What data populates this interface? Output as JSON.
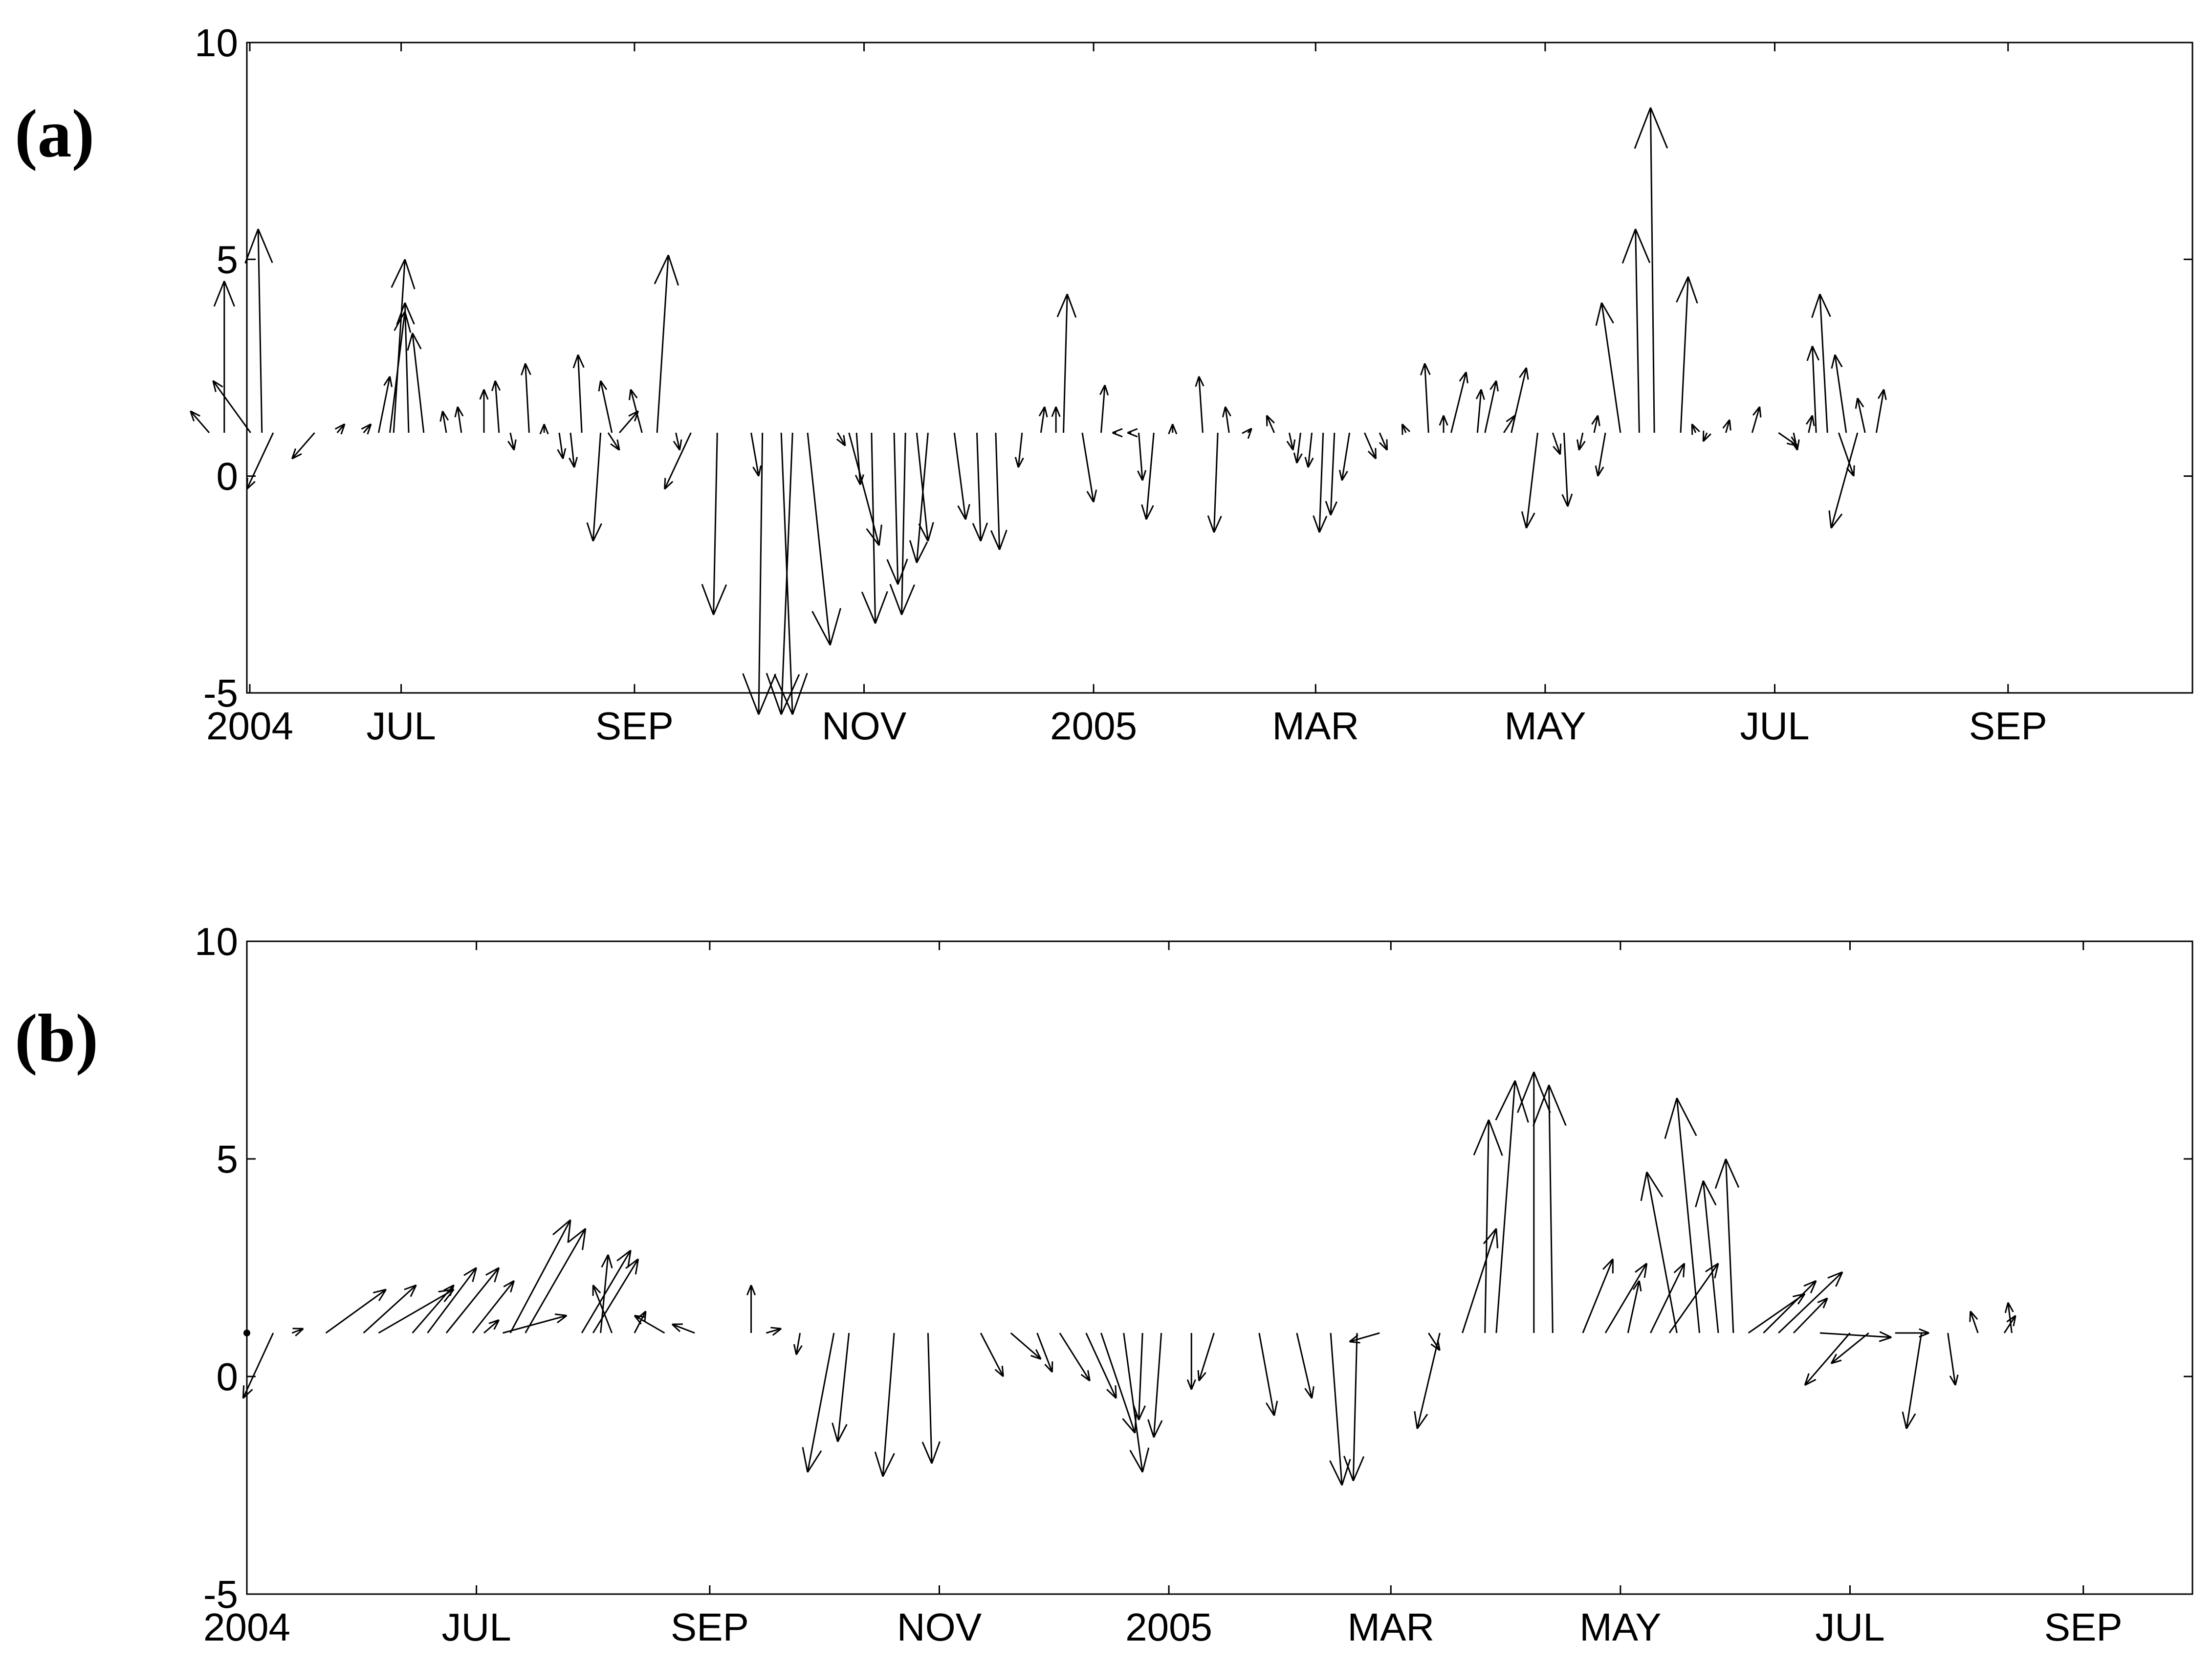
{
  "figure": {
    "title": ""
  },
  "chart_data": [
    {
      "type": "quiver",
      "panel_label": "(a)",
      "title": "",
      "xlabel": "",
      "ylabel": "",
      "baseline": 1,
      "ylim": [
        -5,
        10
      ],
      "yticks": [
        -5,
        0,
        5,
        10
      ],
      "xlim": [
        "2004-05-21",
        "2005-10-20"
      ],
      "xticks": [
        {
          "date": "2004-05-01",
          "label": "2004"
        },
        {
          "date": "2004-07-01",
          "label": "JUL"
        },
        {
          "date": "2004-09-01",
          "label": "SEP"
        },
        {
          "date": "2004-11-01",
          "label": "NOV"
        },
        {
          "date": "2005-01-01",
          "label": "2005"
        },
        {
          "date": "2005-03-01",
          "label": "MAR"
        },
        {
          "date": "2005-05-01",
          "label": "MAY"
        },
        {
          "date": "2005-07-01",
          "label": "JUL"
        },
        {
          "date": "2005-09-01",
          "label": "SEP"
        }
      ],
      "vectors": [
        {
          "date": "2004-05-11",
          "u": -5,
          "v": 0.5
        },
        {
          "date": "2004-05-15",
          "u": 0,
          "v": 3.5
        },
        {
          "date": "2004-05-22",
          "u": -10,
          "v": 1.2
        },
        {
          "date": "2004-05-25",
          "u": -1,
          "v": 4.7
        },
        {
          "date": "2004-05-27",
          "u": 0,
          "v": 0
        },
        {
          "date": "2004-05-28",
          "u": -7,
          "v": -1.3
        },
        {
          "date": "2004-06-08",
          "u": -6,
          "v": -0.6
        },
        {
          "date": "2004-06-14",
          "u": 2,
          "v": 0.2
        },
        {
          "date": "2004-06-21",
          "u": 2,
          "v": 0.2
        },
        {
          "date": "2004-06-25",
          "u": 3,
          "v": 1.3
        },
        {
          "date": "2004-06-28",
          "u": 4,
          "v": 2.8
        },
        {
          "date": "2004-06-29",
          "u": 3,
          "v": 4.0
        },
        {
          "date": "2004-07-03",
          "u": -1,
          "v": 3.0
        },
        {
          "date": "2004-07-07",
          "u": -3,
          "v": 2.3
        },
        {
          "date": "2004-07-13",
          "u": -1,
          "v": 0.5
        },
        {
          "date": "2004-07-17",
          "u": -1,
          "v": 0.6
        },
        {
          "date": "2004-07-23",
          "u": 0,
          "v": 1.0
        },
        {
          "date": "2004-07-27",
          "u": -1,
          "v": 1.2
        },
        {
          "date": "2004-07-30",
          "u": 1,
          "v": -0.4
        },
        {
          "date": "2004-08-04",
          "u": -1,
          "v": 1.6
        },
        {
          "date": "2004-08-08",
          "u": 0,
          "v": 0.2
        },
        {
          "date": "2004-08-12",
          "u": 1,
          "v": -0.6
        },
        {
          "date": "2004-08-15",
          "u": 1,
          "v": -0.8
        },
        {
          "date": "2004-08-18",
          "u": -1,
          "v": 1.8
        },
        {
          "date": "2004-08-21",
          "u": 0,
          "v": 0.0
        },
        {
          "date": "2004-08-23",
          "u": -2,
          "v": -2.5
        },
        {
          "date": "2004-08-25",
          "u": 3,
          "v": -0.4
        },
        {
          "date": "2004-08-26",
          "u": -3,
          "v": 1.2
        },
        {
          "date": "2004-08-28",
          "u": 5,
          "v": 0.5
        },
        {
          "date": "2004-09-03",
          "u": -3,
          "v": 1.0
        },
        {
          "date": "2004-09-07",
          "u": 3,
          "v": 4.1
        },
        {
          "date": "2004-09-12",
          "u": 1,
          "v": -0.4
        },
        {
          "date": "2004-09-16",
          "u": -7,
          "v": -1.3
        },
        {
          "date": "2004-09-23",
          "u": -1,
          "v": -4.2
        },
        {
          "date": "2004-09-30",
          "u": 0,
          "v": 0.0
        },
        {
          "date": "2004-10-02",
          "u": 2,
          "v": -1.0
        },
        {
          "date": "2004-10-05",
          "u": -1,
          "v": -6.5
        },
        {
          "date": "2004-10-10",
          "u": 3,
          "v": -6.5
        },
        {
          "date": "2004-10-13",
          "u": -3,
          "v": -6.5
        },
        {
          "date": "2004-10-17",
          "u": 6,
          "v": -4.9
        },
        {
          "date": "2004-10-25",
          "u": 2,
          "v": -0.3
        },
        {
          "date": "2004-10-28",
          "u": 8,
          "v": -2.6
        },
        {
          "date": "2004-10-30",
          "u": 1,
          "v": -1.2
        },
        {
          "date": "2004-11-03",
          "u": 1,
          "v": -4.4
        },
        {
          "date": "2004-11-09",
          "u": 1,
          "v": -3.5
        },
        {
          "date": "2004-11-12",
          "u": -1,
          "v": -4.2
        },
        {
          "date": "2004-11-15",
          "u": 3,
          "v": -2.5
        },
        {
          "date": "2004-11-18",
          "u": -3,
          "v": -3.0
        },
        {
          "date": "2004-11-25",
          "u": 3,
          "v": -2.0
        },
        {
          "date": "2004-12-01",
          "u": 1,
          "v": -2.5
        },
        {
          "date": "2004-12-06",
          "u": 1,
          "v": -2.7
        },
        {
          "date": "2004-12-13",
          "u": -1,
          "v": -0.8
        },
        {
          "date": "2004-12-18",
          "u": 1,
          "v": 0.6
        },
        {
          "date": "2004-12-22",
          "u": 0,
          "v": 0.6
        },
        {
          "date": "2004-12-24",
          "u": 1,
          "v": 3.2
        },
        {
          "date": "2004-12-29",
          "u": 3,
          "v": -1.6
        },
        {
          "date": "2005-01-03",
          "u": 1,
          "v": 1.1
        },
        {
          "date": "2005-01-07",
          "u": -1,
          "v": 0.0
        },
        {
          "date": "2005-01-11",
          "u": -1,
          "v": 0.0
        },
        {
          "date": "2005-01-13",
          "u": 1,
          "v": -1.1
        },
        {
          "date": "2005-01-17",
          "u": -2,
          "v": -2.0
        },
        {
          "date": "2005-01-22",
          "u": 0,
          "v": 0.2
        },
        {
          "date": "2005-01-27",
          "u": 0,
          "v": 0.0
        },
        {
          "date": "2005-01-30",
          "u": -1,
          "v": 1.3
        },
        {
          "date": "2005-02-03",
          "u": -1,
          "v": -2.3
        },
        {
          "date": "2005-02-06",
          "u": -1,
          "v": 0.6
        },
        {
          "date": "2005-02-11",
          "u": 1,
          "v": 0.1
        },
        {
          "date": "2005-02-18",
          "u": -2,
          "v": 0.4
        },
        {
          "date": "2005-02-22",
          "u": 1,
          "v": -0.4
        },
        {
          "date": "2005-02-25",
          "u": -1,
          "v": -0.7
        },
        {
          "date": "2005-02-28",
          "u": -1,
          "v": -0.8
        },
        {
          "date": "2005-03-03",
          "u": -1,
          "v": -2.3
        },
        {
          "date": "2005-03-06",
          "u": -1,
          "v": -1.9
        },
        {
          "date": "2005-03-10",
          "u": -2,
          "v": -1.1
        },
        {
          "date": "2005-03-14",
          "u": 3,
          "v": -0.6
        },
        {
          "date": "2005-03-18",
          "u": 2,
          "v": -0.4
        },
        {
          "date": "2005-03-25",
          "u": -1,
          "v": 0.2
        },
        {
          "date": "2005-03-31",
          "u": -1,
          "v": 1.6
        },
        {
          "date": "2005-04-04",
          "u": 0,
          "v": 0.4
        },
        {
          "date": "2005-04-06",
          "u": 4,
          "v": 1.4
        },
        {
          "date": "2005-04-13",
          "u": 1,
          "v": 1.0
        },
        {
          "date": "2005-04-15",
          "u": 3,
          "v": 1.2
        },
        {
          "date": "2005-04-20",
          "u": 3,
          "v": 0.4
        },
        {
          "date": "2005-04-22",
          "u": 4,
          "v": 1.5
        },
        {
          "date": "2005-04-29",
          "u": -3,
          "v": -2.2
        },
        {
          "date": "2005-05-03",
          "u": 2,
          "v": -0.5
        },
        {
          "date": "2005-05-06",
          "u": 1,
          "v": -1.7
        },
        {
          "date": "2005-05-11",
          "u": -1,
          "v": -0.4
        },
        {
          "date": "2005-05-14",
          "u": 1,
          "v": 0.4
        },
        {
          "date": "2005-05-17",
          "u": -2,
          "v": -1.0
        },
        {
          "date": "2005-05-21",
          "u": -5,
          "v": 3.0
        },
        {
          "date": "2005-05-26",
          "u": -1,
          "v": 4.7
        },
        {
          "date": "2005-05-30",
          "u": -1,
          "v": 7.5
        },
        {
          "date": "2005-06-06",
          "u": 2,
          "v": 3.6
        },
        {
          "date": "2005-06-10",
          "u": -1,
          "v": 0.2
        },
        {
          "date": "2005-06-13",
          "u": -1,
          "v": -0.2
        },
        {
          "date": "2005-06-18",
          "u": 1,
          "v": 0.3
        },
        {
          "date": "2005-06-25",
          "u": 2,
          "v": 0.6
        },
        {
          "date": "2005-07-02",
          "u": 5,
          "v": -0.3
        },
        {
          "date": "2005-07-06",
          "u": 1,
          "v": -0.4
        },
        {
          "date": "2005-07-10",
          "u": 1,
          "v": 0.4
        },
        {
          "date": "2005-07-12",
          "u": -1,
          "v": 2.0
        },
        {
          "date": "2005-07-15",
          "u": -2,
          "v": 3.2
        },
        {
          "date": "2005-07-18",
          "u": 4,
          "v": -1.0
        },
        {
          "date": "2005-07-20",
          "u": -3,
          "v": 1.8
        },
        {
          "date": "2005-07-23",
          "u": -7,
          "v": -2.2
        },
        {
          "date": "2005-07-25",
          "u": -2,
          "v": 0.8
        },
        {
          "date": "2005-07-28",
          "u": 2,
          "v": 1.0
        }
      ]
    },
    {
      "type": "quiver",
      "panel_label": "(b)",
      "title": "",
      "xlabel": "",
      "ylabel": "",
      "baseline": 1,
      "ylim": [
        -5,
        10
      ],
      "yticks": [
        -5,
        0,
        5,
        10
      ],
      "xlim": [
        "2004-05-01",
        "2005-09-30"
      ],
      "xticks": [
        {
          "date": "2004-05-01",
          "label": "2004"
        },
        {
          "date": "2004-07-01",
          "label": "JUL"
        },
        {
          "date": "2004-09-01",
          "label": "SEP"
        },
        {
          "date": "2004-11-01",
          "label": "NOV"
        },
        {
          "date": "2005-01-01",
          "label": "2005"
        },
        {
          "date": "2005-03-01",
          "label": "MAR"
        },
        {
          "date": "2005-05-01",
          "label": "MAY"
        },
        {
          "date": "2005-07-01",
          "label": "JUL"
        },
        {
          "date": "2005-09-01",
          "label": "SEP"
        }
      ],
      "marker": {
        "date": "2004-05-01",
        "value": 1
      },
      "vectors": [
        {
          "date": "2004-05-08",
          "u": -8,
          "v": -1.5
        },
        {
          "date": "2004-05-13",
          "u": 3,
          "v": 0.1
        },
        {
          "date": "2004-05-22",
          "u": 16,
          "v": 1.0
        },
        {
          "date": "2004-06-01",
          "u": 14,
          "v": 1.1
        },
        {
          "date": "2004-06-05",
          "u": 20,
          "v": 1.0
        },
        {
          "date": "2004-06-14",
          "u": 11,
          "v": 1.1
        },
        {
          "date": "2004-06-18",
          "u": 13,
          "v": 1.5
        },
        {
          "date": "2004-06-23",
          "u": 14,
          "v": 1.5
        },
        {
          "date": "2004-06-30",
          "u": 11,
          "v": 1.2
        },
        {
          "date": "2004-07-03",
          "u": 4,
          "v": 0.3
        },
        {
          "date": "2004-07-08",
          "u": 17,
          "v": 0.4
        },
        {
          "date": "2004-07-10",
          "u": 16,
          "v": 2.6
        },
        {
          "date": "2004-07-14",
          "u": 16,
          "v": 2.4
        },
        {
          "date": "2004-07-29",
          "u": 13,
          "v": 1.9
        },
        {
          "date": "2004-08-01",
          "u": 12,
          "v": 1.7
        },
        {
          "date": "2004-08-03",
          "u": 2,
          "v": 1.8
        },
        {
          "date": "2004-08-06",
          "u": -5,
          "v": 1.1
        },
        {
          "date": "2004-08-12",
          "u": 3,
          "v": 0.5
        },
        {
          "date": "2004-08-20",
          "u": -8,
          "v": 0.4
        },
        {
          "date": "2004-08-28",
          "u": -6,
          "v": 0.2
        },
        {
          "date": "2004-09-12",
          "u": 0,
          "v": 1.1
        },
        {
          "date": "2004-09-16",
          "u": 4,
          "v": 0.1
        },
        {
          "date": "2004-09-25",
          "u": -1,
          "v": -0.5
        },
        {
          "date": "2004-10-04",
          "u": -7,
          "v": -3.2
        },
        {
          "date": "2004-10-08",
          "u": -3,
          "v": -2.5
        },
        {
          "date": "2004-10-20",
          "u": -3,
          "v": -3.3
        },
        {
          "date": "2004-10-29",
          "u": 1,
          "v": -3.0
        },
        {
          "date": "2004-11-12",
          "u": 6,
          "v": -1.0
        },
        {
          "date": "2004-11-20",
          "u": 8,
          "v": -0.6
        },
        {
          "date": "2004-11-27",
          "u": 4,
          "v": -0.9
        },
        {
          "date": "2004-12-03",
          "u": 8,
          "v": -1.1
        },
        {
          "date": "2004-12-10",
          "u": 8,
          "v": -1.5
        },
        {
          "date": "2004-12-14",
          "u": 9,
          "v": -2.3
        },
        {
          "date": "2004-12-20",
          "u": 5,
          "v": -3.2
        },
        {
          "date": "2004-12-25",
          "u": -1,
          "v": -2.0
        },
        {
          "date": "2004-12-30",
          "u": -2,
          "v": -2.4
        },
        {
          "date": "2005-01-07",
          "u": 0,
          "v": -1.3
        },
        {
          "date": "2005-01-13",
          "u": -4,
          "v": -1.1
        },
        {
          "date": "2005-01-25",
          "u": 4,
          "v": -1.9
        },
        {
          "date": "2005-02-04",
          "u": 4,
          "v": -1.5
        },
        {
          "date": "2005-02-13",
          "u": 3,
          "v": -3.5
        },
        {
          "date": "2005-02-20",
          "u": -1,
          "v": -3.4
        },
        {
          "date": "2005-02-26",
          "u": -8,
          "v": -0.2
        },
        {
          "date": "2005-03-11",
          "u": 3,
          "v": -0.4
        },
        {
          "date": "2005-03-14",
          "u": -6,
          "v": -2.2
        },
        {
          "date": "2005-03-20",
          "u": 9,
          "v": 2.4
        },
        {
          "date": "2005-03-26",
          "u": 1,
          "v": 4.9
        },
        {
          "date": "2005-03-29",
          "u": 5,
          "v": 5.8
        },
        {
          "date": "2005-04-08",
          "u": 0,
          "v": 6.0
        },
        {
          "date": "2005-04-13",
          "u": -1,
          "v": 5.7
        },
        {
          "date": "2005-04-21",
          "u": 8,
          "v": 1.7
        },
        {
          "date": "2005-04-27",
          "u": 11,
          "v": 1.6
        },
        {
          "date": "2005-05-03",
          "u": 3,
          "v": 1.2
        },
        {
          "date": "2005-05-09",
          "u": 9,
          "v": 1.6
        },
        {
          "date": "2005-05-14",
          "u": 13,
          "v": 1.6
        },
        {
          "date": "2005-05-16",
          "u": -8,
          "v": 3.7
        },
        {
          "date": "2005-05-22",
          "u": -6,
          "v": 5.4
        },
        {
          "date": "2005-05-27",
          "u": -4,
          "v": 3.5
        },
        {
          "date": "2005-05-31",
          "u": -2,
          "v": 4.0
        },
        {
          "date": "2005-06-04",
          "u": 15,
          "v": 0.9
        },
        {
          "date": "2005-06-08",
          "u": 14,
          "v": 1.2
        },
        {
          "date": "2005-06-12",
          "u": 17,
          "v": 1.4
        },
        {
          "date": "2005-06-16",
          "u": 9,
          "v": 0.8
        },
        {
          "date": "2005-06-23",
          "u": 19,
          "v": -0.1
        },
        {
          "date": "2005-07-01",
          "u": -12,
          "v": -1.2
        },
        {
          "date": "2005-07-06",
          "u": -10,
          "v": -0.7
        },
        {
          "date": "2005-07-13",
          "u": 9,
          "v": 0.0
        },
        {
          "date": "2005-07-20",
          "u": -4,
          "v": -2.2
        },
        {
          "date": "2005-07-27",
          "u": 2,
          "v": -1.2
        },
        {
          "date": "2005-08-04",
          "u": -2,
          "v": 0.5
        },
        {
          "date": "2005-08-11",
          "u": 3,
          "v": 0.4
        },
        {
          "date": "2005-08-13",
          "u": -1,
          "v": 0.7
        }
      ]
    }
  ]
}
